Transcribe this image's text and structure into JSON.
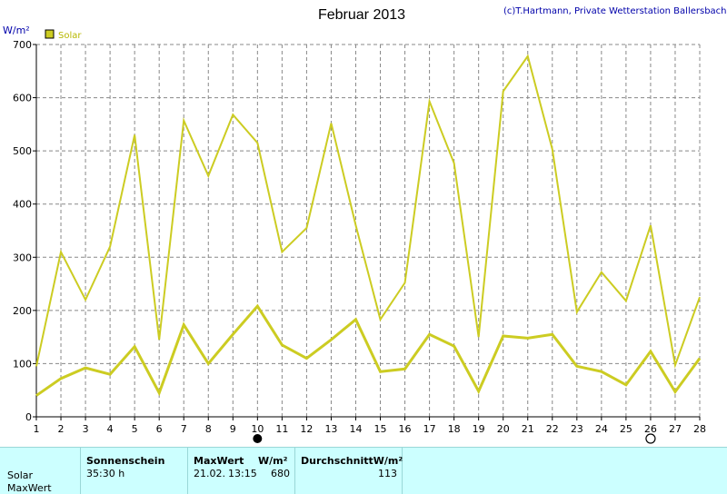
{
  "header": {
    "title": "Februar 2013",
    "credit": "(c)T.Hartmann, Private Wetterstation Ballersbach",
    "unit": "W/m²"
  },
  "colors": {
    "series": "#cccc22",
    "grid": "#888888",
    "axis": "#000000",
    "background": "#ffffff",
    "info_background": "#ccffff"
  },
  "chart_data": {
    "type": "line",
    "ylabel": "W/m²",
    "ylim": [
      0,
      700
    ],
    "yticks": [
      0,
      100,
      200,
      300,
      400,
      500,
      600,
      700
    ],
    "x": [
      1,
      2,
      3,
      4,
      5,
      6,
      7,
      8,
      9,
      10,
      11,
      12,
      13,
      14,
      15,
      16,
      17,
      18,
      19,
      20,
      21,
      22,
      23,
      24,
      25,
      26,
      27,
      28
    ],
    "legend": {
      "label": "Solar",
      "position": "top-left"
    },
    "grid": true,
    "series": [
      {
        "name": "Solar",
        "role": "max",
        "values": [
          95,
          310,
          220,
          320,
          530,
          145,
          557,
          453,
          568,
          515,
          310,
          355,
          552,
          360,
          183,
          252,
          593,
          477,
          150,
          612,
          678,
          503,
          197,
          272,
          218,
          360,
          97,
          225
        ]
      },
      {
        "name": "Solar",
        "role": "average",
        "values": [
          40,
          72,
          92,
          80,
          132,
          45,
          173,
          100,
          155,
          208,
          135,
          110,
          145,
          183,
          85,
          90,
          155,
          133,
          48,
          152,
          148,
          155,
          95,
          85,
          60,
          123,
          47,
          110
        ]
      }
    ],
    "markers": [
      {
        "symbol": "new-moon-icon",
        "x": 10
      },
      {
        "symbol": "full-moon-icon",
        "x": 26
      }
    ]
  },
  "info": {
    "row_label": "Solar",
    "row_label2": "MaxWert",
    "sunshine_header": "Sonnenschein",
    "sunshine_value": "35:30 h",
    "max_header": "MaxWert",
    "max_unit": "W/m²",
    "max_date": "21.02.",
    "max_time": "13:15",
    "max_value": "680",
    "avg_header": "DurchschnittW/m²",
    "avg_value": "113"
  }
}
